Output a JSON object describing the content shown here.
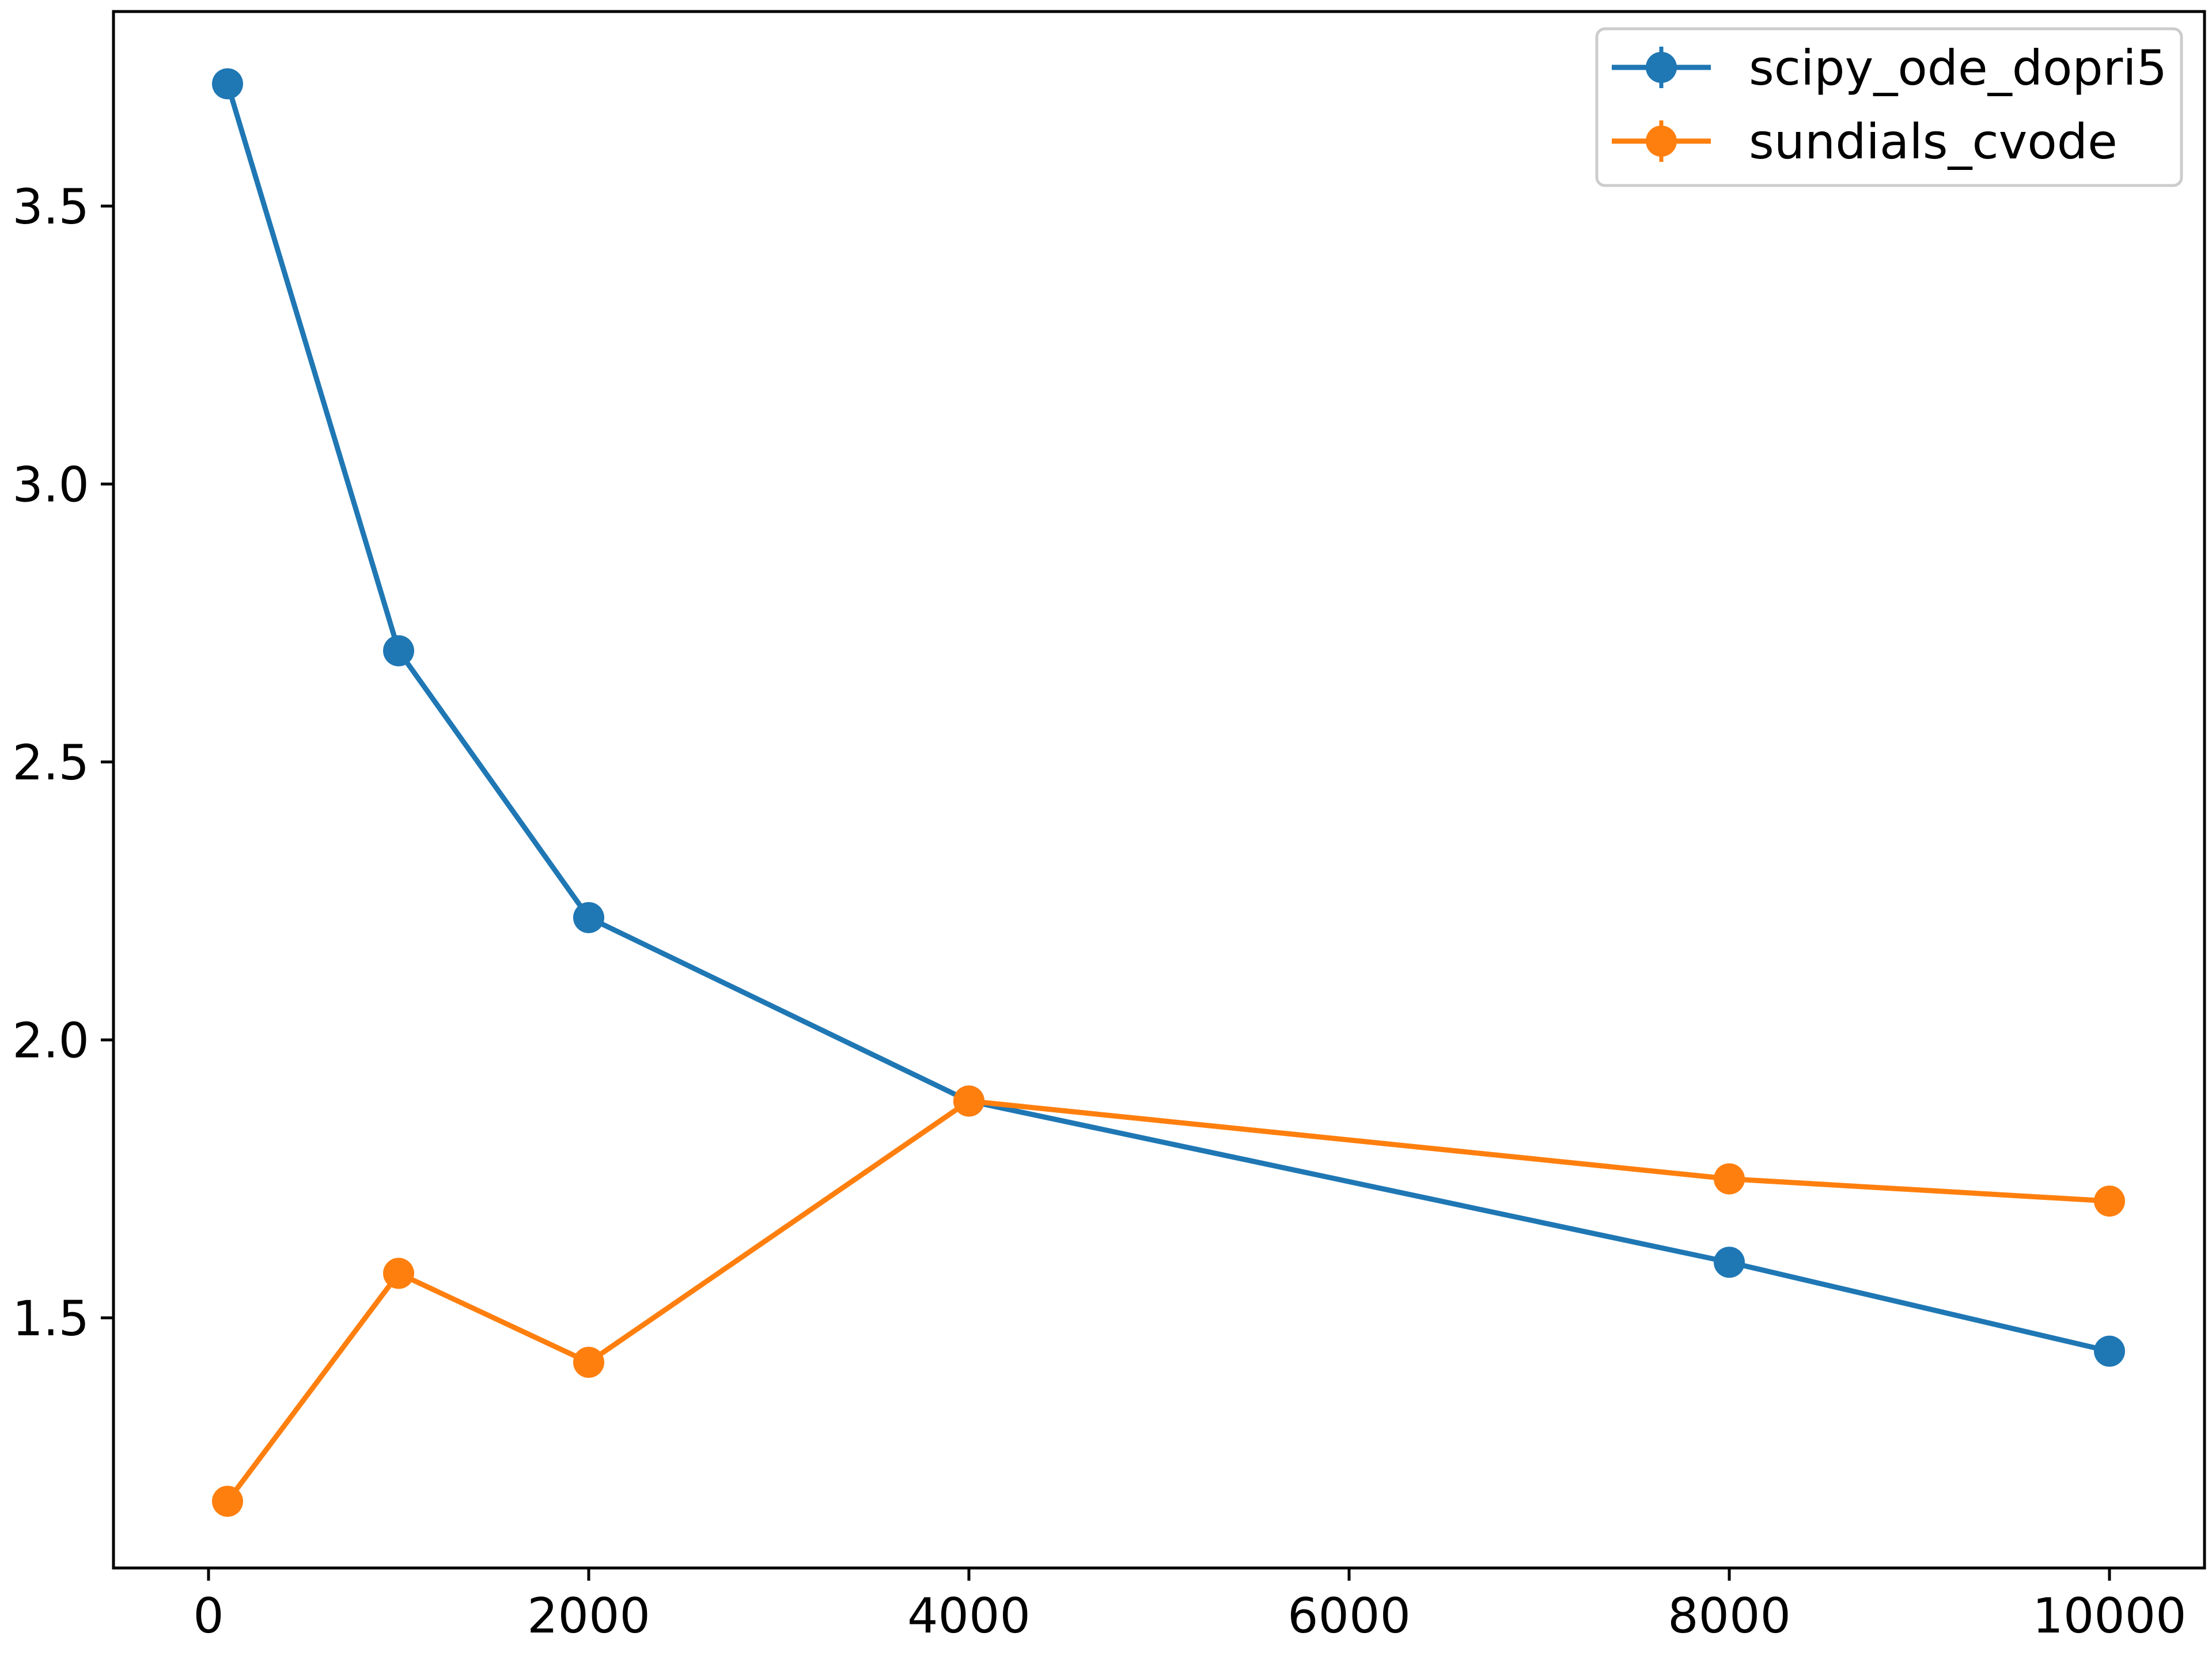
{
  "chart_data": {
    "type": "line",
    "title": "",
    "xlabel": "",
    "ylabel": "",
    "xlim": [
      -500,
      10500
    ],
    "ylim": [
      1.05,
      3.85
    ],
    "xticks": [
      0,
      2000,
      4000,
      6000,
      8000,
      10000
    ],
    "xtick_labels": [
      "0",
      "2000",
      "4000",
      "6000",
      "8000",
      "10000"
    ],
    "yticks": [
      1.5,
      2.0,
      2.5,
      3.0,
      3.5
    ],
    "ytick_labels": [
      "1.5",
      "2.0",
      "2.5",
      "3.0",
      "3.5"
    ],
    "grid": false,
    "legend": "top-right",
    "x": [
      100,
      1000,
      2000,
      4000,
      8000,
      10000
    ],
    "series": [
      {
        "name": "scipy_ode_dopri5",
        "color": "#1f77b4",
        "values": [
          3.72,
          2.7,
          2.22,
          1.89,
          1.6,
          1.44
        ]
      },
      {
        "name": "sundials_cvode",
        "color": "#ff7f0e",
        "values": [
          1.17,
          1.58,
          1.42,
          1.89,
          1.75,
          1.71
        ]
      }
    ]
  }
}
